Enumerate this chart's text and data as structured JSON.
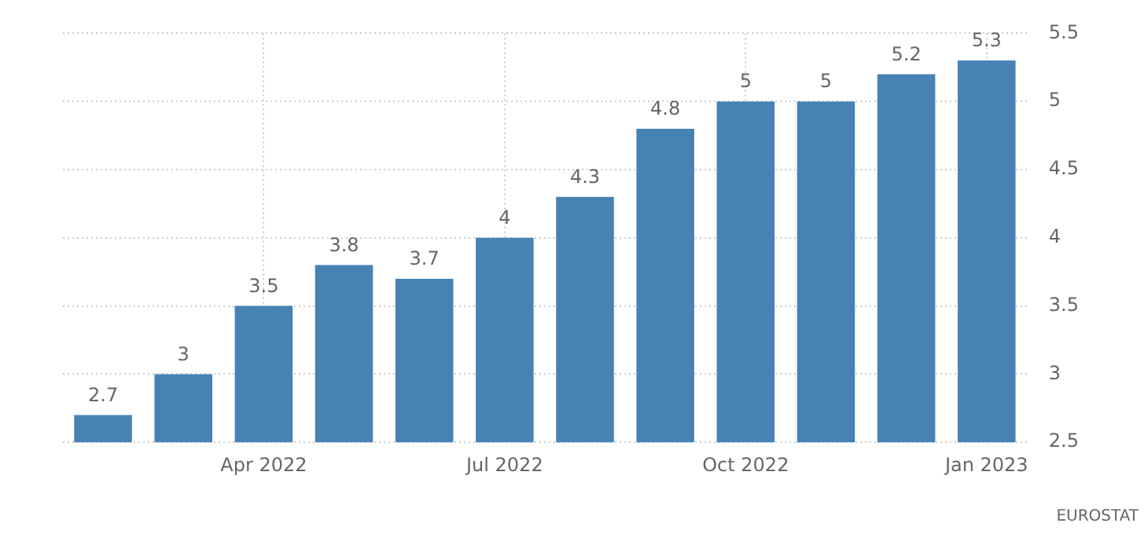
{
  "chart_data": {
    "type": "bar",
    "categories": [
      null,
      null,
      "Apr 2022",
      null,
      null,
      "Jul 2022",
      null,
      null,
      "Oct 2022",
      null,
      null,
      "Jan 2023"
    ],
    "values": [
      2.7,
      3,
      3.5,
      3.8,
      3.7,
      4,
      4.3,
      4.8,
      5,
      5,
      5.2,
      5.3
    ],
    "color": "#4682b4",
    "ylim": [
      2.5,
      5.5
    ],
    "yticks": [
      2.5,
      3,
      3.5,
      4,
      4.5,
      5,
      5.5
    ],
    "grid": true,
    "data_labels": true,
    "annotations": [
      "EUROSTAT"
    ]
  }
}
